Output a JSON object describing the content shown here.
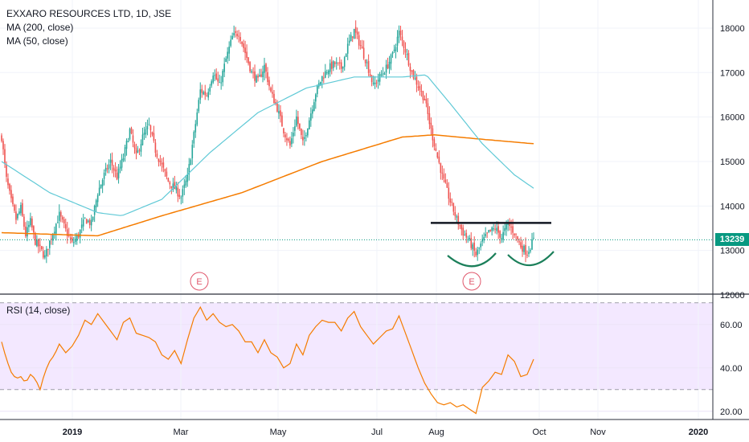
{
  "chart_data": [
    {
      "type": "candlestick",
      "title": "EXXARO RESOURCES LTD, 1D, JSE",
      "indicators": [
        {
          "name": "MA (200, close)",
          "color": "#f57c00"
        },
        {
          "name": "MA (50, close)",
          "color": "#5fc9d6"
        }
      ],
      "ylim": [
        12000,
        18400
      ],
      "y_ticks": [
        "12000",
        "13000",
        "14000",
        "15000",
        "16000",
        "17000",
        "18000"
      ],
      "x_ticks": [
        "2019",
        "Mar",
        "May",
        "Jul",
        "Aug",
        "Oct",
        "Nov",
        "2020"
      ],
      "last_price": "13239",
      "resistance_level": 13620,
      "earnings_markers": [
        "E",
        "E"
      ],
      "price_path": [
        [
          0,
          15550
        ],
        [
          3,
          14600
        ],
        [
          6,
          14100
        ],
        [
          9,
          13700
        ],
        [
          12,
          13950
        ],
        [
          15,
          13350
        ],
        [
          18,
          13650
        ],
        [
          21,
          13200
        ],
        [
          24,
          13050
        ],
        [
          27,
          12850
        ],
        [
          30,
          13200
        ],
        [
          33,
          13500
        ],
        [
          36,
          13800
        ],
        [
          40,
          13450
        ],
        [
          44,
          13150
        ],
        [
          48,
          13350
        ],
        [
          52,
          13700
        ],
        [
          56,
          13600
        ],
        [
          60,
          14300
        ],
        [
          64,
          14700
        ],
        [
          68,
          15000
        ],
        [
          72,
          14650
        ],
        [
          76,
          15100
        ],
        [
          80,
          15700
        ],
        [
          84,
          15100
        ],
        [
          88,
          15550
        ],
        [
          92,
          15800
        ],
        [
          96,
          15250
        ],
        [
          100,
          14900
        ],
        [
          104,
          14550
        ],
        [
          108,
          14400
        ],
        [
          112,
          14200
        ],
        [
          116,
          14650
        ],
        [
          120,
          15600
        ],
        [
          124,
          16600
        ],
        [
          128,
          16500
        ],
        [
          132,
          17000
        ],
        [
          136,
          16700
        ],
        [
          140,
          17300
        ],
        [
          144,
          17800
        ],
        [
          148,
          17900
        ],
        [
          152,
          17450
        ],
        [
          156,
          17000
        ],
        [
          160,
          16800
        ],
        [
          164,
          17150
        ],
        [
          168,
          16550
        ],
        [
          172,
          16200
        ],
        [
          176,
          15700
        ],
        [
          180,
          15350
        ],
        [
          184,
          16000
        ],
        [
          188,
          15400
        ],
        [
          192,
          15950
        ],
        [
          196,
          16550
        ],
        [
          200,
          16900
        ],
        [
          204,
          17100
        ],
        [
          208,
          17200
        ],
        [
          212,
          17100
        ],
        [
          216,
          17600
        ],
        [
          220,
          17950
        ],
        [
          224,
          17600
        ],
        [
          228,
          17200
        ],
        [
          232,
          16700
        ],
        [
          236,
          16900
        ],
        [
          240,
          17100
        ],
        [
          244,
          17400
        ],
        [
          248,
          17900
        ],
        [
          252,
          17500
        ],
        [
          256,
          17000
        ],
        [
          260,
          16700
        ],
        [
          264,
          16400
        ],
        [
          268,
          15700
        ],
        [
          272,
          15100
        ],
        [
          276,
          14550
        ],
        [
          280,
          14100
        ],
        [
          284,
          13700
        ],
        [
          288,
          13400
        ],
        [
          292,
          13200
        ],
        [
          296,
          12900
        ],
        [
          300,
          13200
        ],
        [
          304,
          13400
        ],
        [
          308,
          13500
        ],
        [
          312,
          13300
        ],
        [
          316,
          13600
        ],
        [
          320,
          13400
        ],
        [
          324,
          13100
        ],
        [
          328,
          12950
        ],
        [
          332,
          13239
        ]
      ],
      "ma200_path": [
        [
          0,
          13400
        ],
        [
          60,
          13330
        ],
        [
          100,
          13780
        ],
        [
          150,
          14300
        ],
        [
          200,
          15000
        ],
        [
          250,
          15550
        ],
        [
          270,
          15600
        ],
        [
          300,
          15500
        ],
        [
          332,
          15400
        ]
      ],
      "ma50_path": [
        [
          0,
          15000
        ],
        [
          30,
          14300
        ],
        [
          60,
          13850
        ],
        [
          75,
          13780
        ],
        [
          100,
          14150
        ],
        [
          130,
          15200
        ],
        [
          160,
          16100
        ],
        [
          190,
          16650
        ],
        [
          220,
          16900
        ],
        [
          250,
          16900
        ],
        [
          265,
          16950
        ],
        [
          280,
          16300
        ],
        [
          300,
          15400
        ],
        [
          320,
          14700
        ],
        [
          332,
          14400
        ]
      ]
    },
    {
      "type": "line",
      "title": "RSI (14, close)",
      "ylim": [
        15,
        72
      ],
      "y_ticks": [
        "20.00",
        "40.00",
        "60.00"
      ],
      "band": [
        30,
        70
      ],
      "rsi_path": [
        [
          0,
          52
        ],
        [
          3,
          44
        ],
        [
          6,
          38
        ],
        [
          9,
          35
        ],
        [
          12,
          36
        ],
        [
          15,
          33
        ],
        [
          18,
          37
        ],
        [
          21,
          35
        ],
        [
          24,
          30
        ],
        [
          27,
          38
        ],
        [
          30,
          43
        ],
        [
          33,
          46
        ],
        [
          36,
          51
        ],
        [
          40,
          47
        ],
        [
          44,
          50
        ],
        [
          48,
          55
        ],
        [
          52,
          62
        ],
        [
          56,
          60
        ],
        [
          60,
          65
        ],
        [
          64,
          61
        ],
        [
          68,
          57
        ],
        [
          72,
          53
        ],
        [
          76,
          61
        ],
        [
          80,
          63
        ],
        [
          84,
          56
        ],
        [
          88,
          55
        ],
        [
          92,
          54
        ],
        [
          96,
          52
        ],
        [
          100,
          46
        ],
        [
          104,
          44
        ],
        [
          108,
          48
        ],
        [
          112,
          42
        ],
        [
          116,
          53
        ],
        [
          120,
          63
        ],
        [
          124,
          68
        ],
        [
          128,
          62
        ],
        [
          132,
          65
        ],
        [
          136,
          61
        ],
        [
          140,
          59
        ],
        [
          144,
          60
        ],
        [
          148,
          57
        ],
        [
          152,
          52
        ],
        [
          156,
          52
        ],
        [
          160,
          47
        ],
        [
          164,
          53
        ],
        [
          168,
          47
        ],
        [
          172,
          45
        ],
        [
          176,
          40
        ],
        [
          180,
          42
        ],
        [
          184,
          51
        ],
        [
          188,
          46
        ],
        [
          192,
          55
        ],
        [
          196,
          59
        ],
        [
          200,
          62
        ],
        [
          204,
          61
        ],
        [
          208,
          61
        ],
        [
          212,
          57
        ],
        [
          216,
          63
        ],
        [
          220,
          66
        ],
        [
          224,
          59
        ],
        [
          228,
          55
        ],
        [
          232,
          51
        ],
        [
          236,
          54
        ],
        [
          240,
          57
        ],
        [
          244,
          58
        ],
        [
          248,
          64
        ],
        [
          252,
          56
        ],
        [
          256,
          48
        ],
        [
          260,
          40
        ],
        [
          264,
          33
        ],
        [
          268,
          28
        ],
        [
          272,
          24
        ],
        [
          276,
          23
        ],
        [
          280,
          24
        ],
        [
          284,
          22
        ],
        [
          288,
          23
        ],
        [
          292,
          21
        ],
        [
          296,
          19
        ],
        [
          300,
          31
        ],
        [
          304,
          34
        ],
        [
          308,
          38
        ],
        [
          312,
          37
        ],
        [
          316,
          46
        ],
        [
          320,
          43
        ],
        [
          324,
          36
        ],
        [
          328,
          37
        ],
        [
          332,
          44
        ]
      ]
    }
  ],
  "ui": {
    "up_color": "#26a69a",
    "down_color": "#ef5350",
    "price_tag_color": "#089981",
    "rsi_color": "#f57c00",
    "rsi_band_color": "#f3e8ff"
  }
}
